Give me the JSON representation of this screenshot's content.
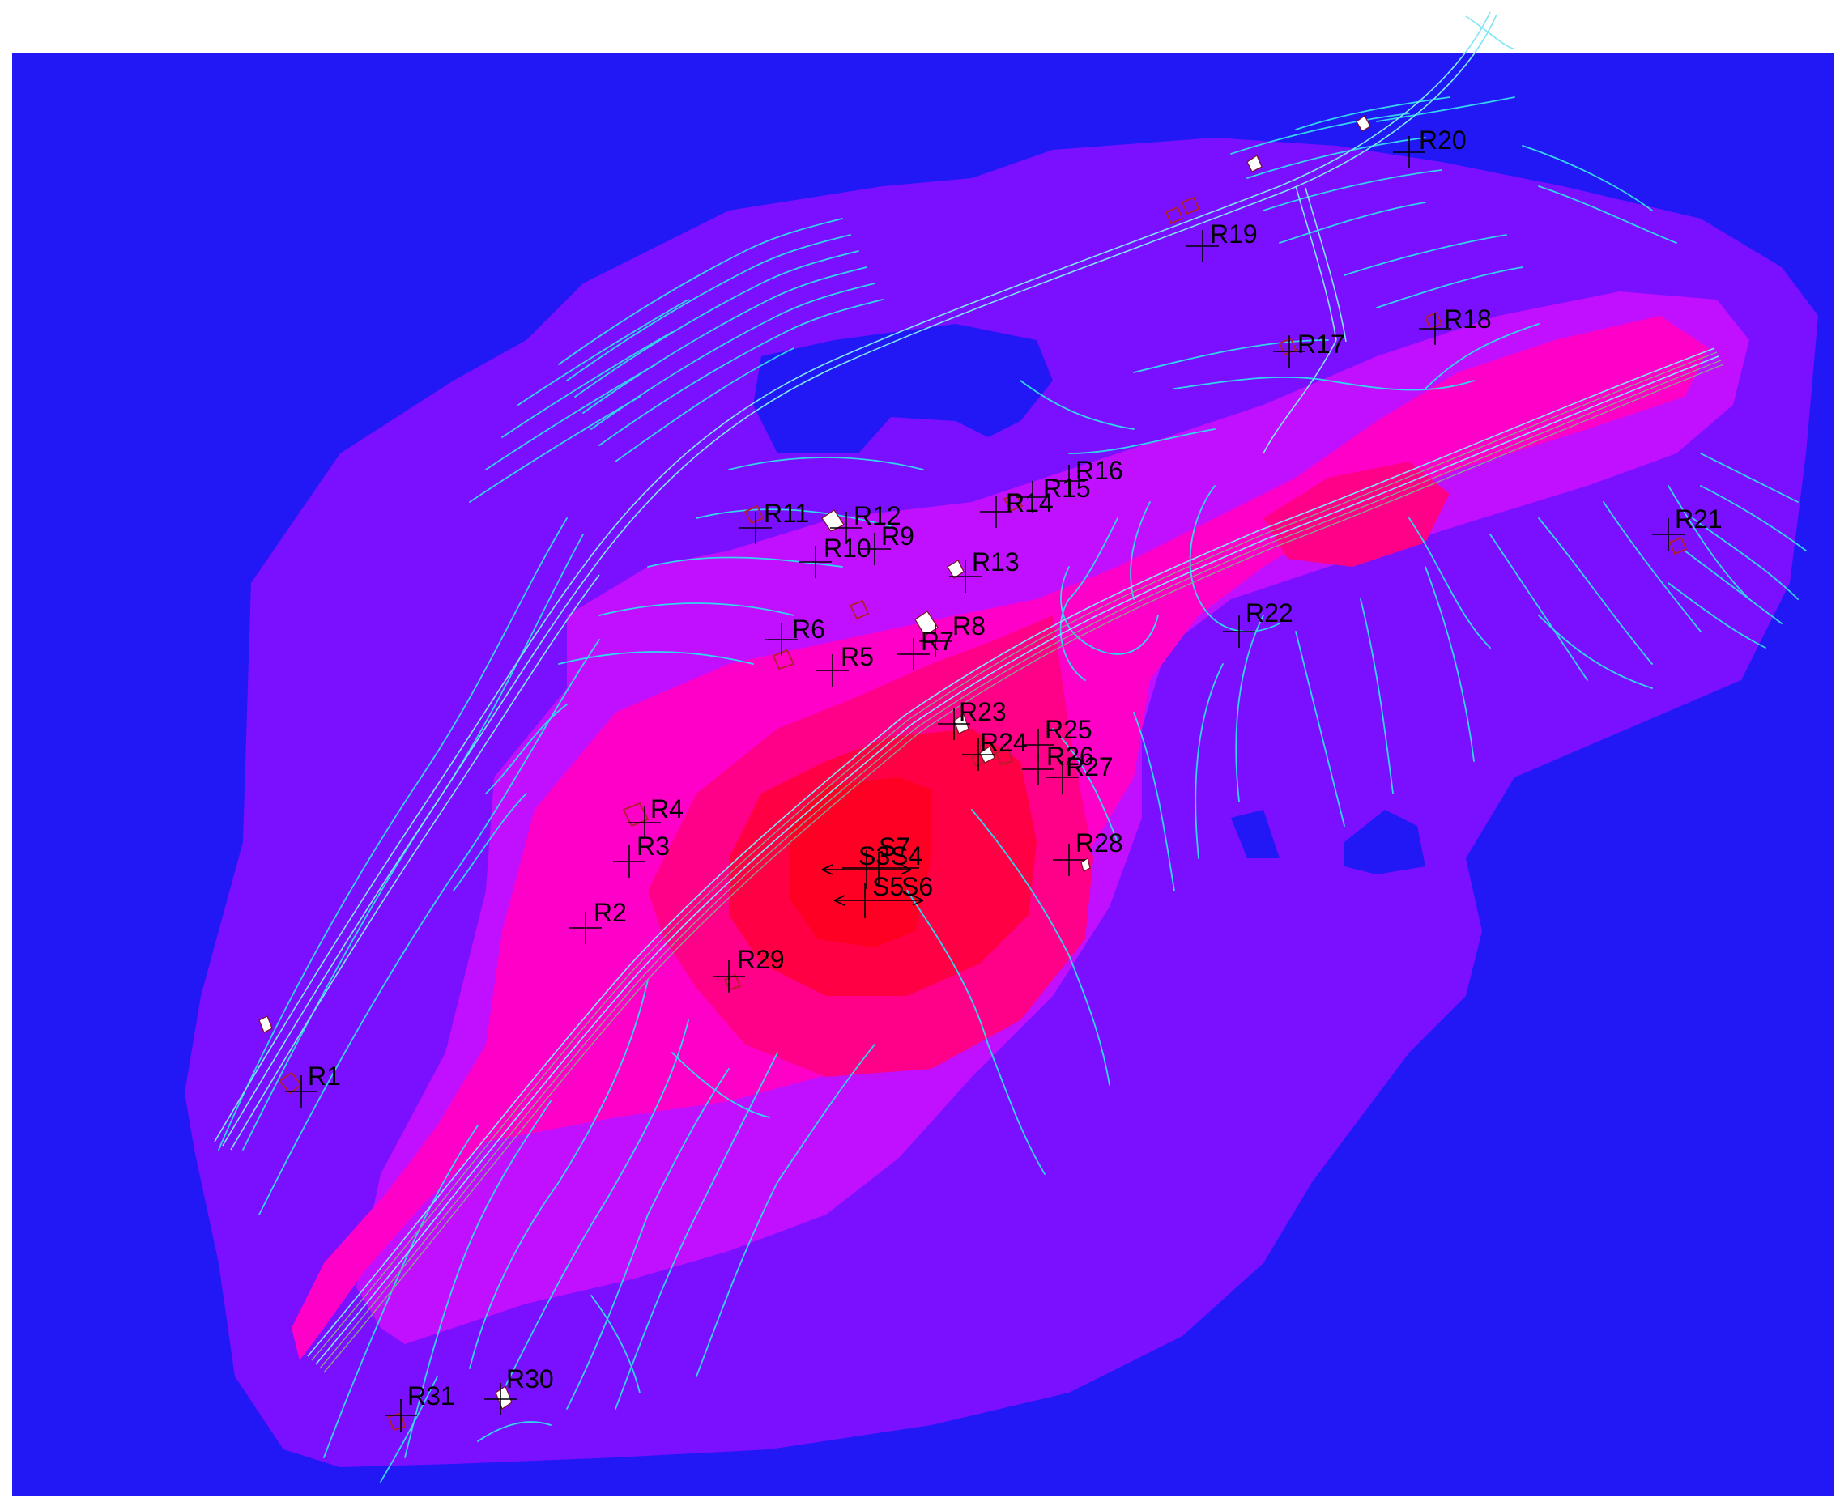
{
  "colors": {
    "background": "#2218f5",
    "band_1": "#7a10ff",
    "band_2": "#c010ff",
    "band_3": "#ff00c8",
    "band_4": "#ff0088",
    "band_5": "#ff0044",
    "band_6": "#ff0025",
    "contour": "#33d4ee",
    "receptor_marker": "#000000",
    "building_outline": "#b0202a"
  },
  "receptors": [
    {
      "id": "R1",
      "label": "R1"
    },
    {
      "id": "R2",
      "label": "R2"
    },
    {
      "id": "R3",
      "label": "R3"
    },
    {
      "id": "R4",
      "label": "R4"
    },
    {
      "id": "R5",
      "label": "R5"
    },
    {
      "id": "R6",
      "label": "R6"
    },
    {
      "id": "R7",
      "label": "R7"
    },
    {
      "id": "R8",
      "label": "R8"
    },
    {
      "id": "R9",
      "label": "R9"
    },
    {
      "id": "R10",
      "label": "R10"
    },
    {
      "id": "R11",
      "label": "R11"
    },
    {
      "id": "R12",
      "label": "R12"
    },
    {
      "id": "R13",
      "label": "R13"
    },
    {
      "id": "R14",
      "label": "R14"
    },
    {
      "id": "R15",
      "label": "R15"
    },
    {
      "id": "R16",
      "label": "R16"
    },
    {
      "id": "R17",
      "label": "R17"
    },
    {
      "id": "R18",
      "label": "R18"
    },
    {
      "id": "R19",
      "label": "R19"
    },
    {
      "id": "R20",
      "label": "R20"
    },
    {
      "id": "R21",
      "label": "R21"
    },
    {
      "id": "R22",
      "label": "R22"
    },
    {
      "id": "R23",
      "label": "R23"
    },
    {
      "id": "R24",
      "label": "R24"
    },
    {
      "id": "R25",
      "label": "R25"
    },
    {
      "id": "R26",
      "label": "R26"
    },
    {
      "id": "R27",
      "label": "R27"
    },
    {
      "id": "R28",
      "label": "R28"
    },
    {
      "id": "R29",
      "label": "R29"
    },
    {
      "id": "R30",
      "label": "R30"
    },
    {
      "id": "R31",
      "label": "R31"
    }
  ],
  "sources": [
    {
      "id": "S3",
      "label": "S3"
    },
    {
      "id": "S4",
      "label": "S4"
    },
    {
      "id": "S5",
      "label": "S5"
    },
    {
      "id": "S6",
      "label": "S6"
    },
    {
      "id": "S7",
      "label": "S7"
    }
  ]
}
